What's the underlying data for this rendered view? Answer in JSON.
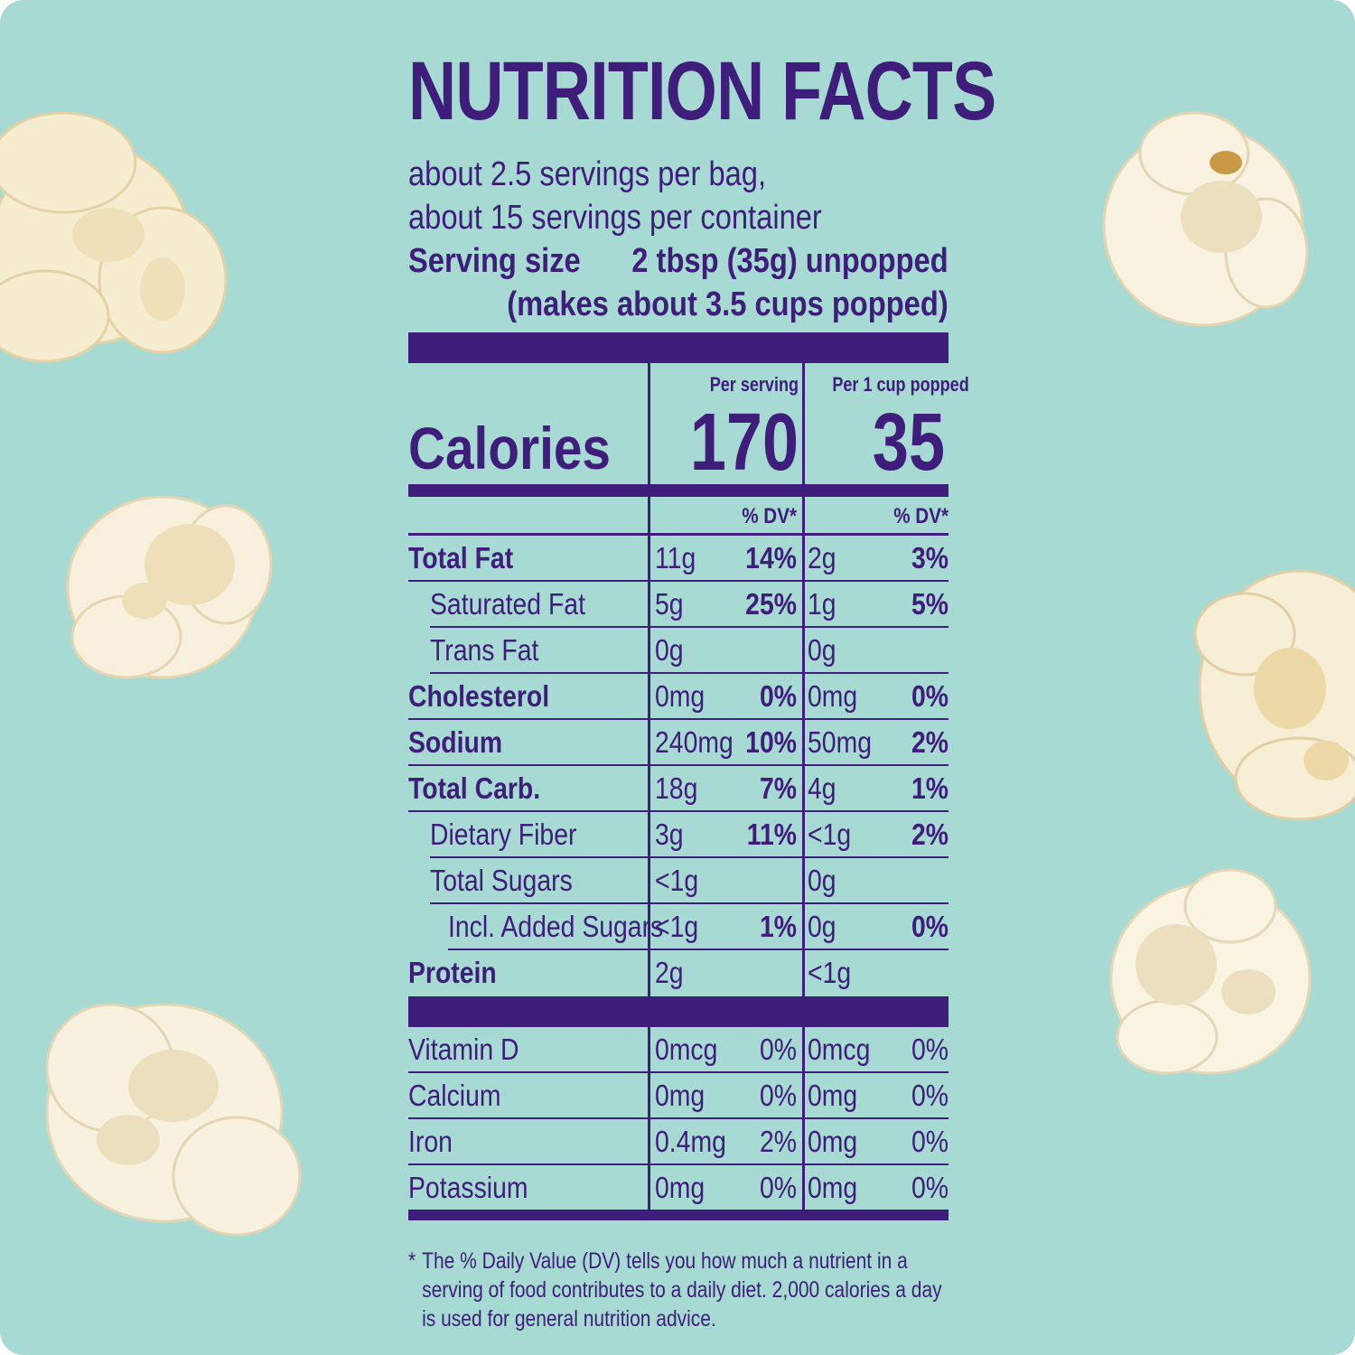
{
  "colors": {
    "background": "#a6dad3",
    "ink": "#3f1d7a",
    "popcorn": "#f7eed6"
  },
  "title": "NUTRITION FACTS",
  "servings_line1": "about 2.5 servings per bag,",
  "servings_line2": "about 15 servings per container",
  "serving_size_label": "Serving size",
  "serving_size_value": "2 tbsp (35g) unpopped",
  "serving_size_note": "(makes about 3.5 cups popped)",
  "columns": {
    "per_serving": "Per serving",
    "per_cup": "Per 1 cup popped",
    "dv": "% DV*"
  },
  "calories": {
    "label": "Calories",
    "per_serving": "170",
    "per_cup": "35"
  },
  "nutrients": [
    {
      "name": "Total Fat",
      "bold": true,
      "indent": 0,
      "serv_amt": "11g",
      "serv_dv": "14%",
      "cup_amt": "2g",
      "cup_dv": "3%"
    },
    {
      "name": "Saturated Fat",
      "bold": false,
      "indent": 1,
      "serv_amt": "5g",
      "serv_dv": "25%",
      "cup_amt": "1g",
      "cup_dv": "5%"
    },
    {
      "name": "Trans Fat",
      "bold": false,
      "indent": 1,
      "serv_amt": "0g",
      "serv_dv": "",
      "cup_amt": "0g",
      "cup_dv": ""
    },
    {
      "name": "Cholesterol",
      "bold": true,
      "indent": 0,
      "serv_amt": "0mg",
      "serv_dv": "0%",
      "cup_amt": "0mg",
      "cup_dv": "0%"
    },
    {
      "name": "Sodium",
      "bold": true,
      "indent": 0,
      "serv_amt": "240mg",
      "serv_dv": "10%",
      "cup_amt": "50mg",
      "cup_dv": "2%"
    },
    {
      "name": "Total Carb.",
      "bold": true,
      "indent": 0,
      "serv_amt": "18g",
      "serv_dv": "7%",
      "cup_amt": "4g",
      "cup_dv": "1%"
    },
    {
      "name": "Dietary Fiber",
      "bold": false,
      "indent": 1,
      "serv_amt": "3g",
      "serv_dv": "11%",
      "cup_amt": "<1g",
      "cup_dv": "2%"
    },
    {
      "name": "Total Sugars",
      "bold": false,
      "indent": 1,
      "serv_amt": "<1g",
      "serv_dv": "",
      "cup_amt": "0g",
      "cup_dv": ""
    },
    {
      "name": "Incl. Added Sugars",
      "bold": false,
      "indent": 2,
      "serv_amt": "<1g",
      "serv_dv": "1%",
      "cup_amt": "0g",
      "cup_dv": "0%"
    },
    {
      "name": "Protein",
      "bold": true,
      "indent": 0,
      "serv_amt": "2g",
      "serv_dv": "",
      "cup_amt": "<1g",
      "cup_dv": ""
    }
  ],
  "vitamins": [
    {
      "name": "Vitamin D",
      "serv_amt": "0mcg",
      "serv_dv": "0%",
      "cup_amt": "0mcg",
      "cup_dv": "0%"
    },
    {
      "name": "Calcium",
      "serv_amt": "0mg",
      "serv_dv": "0%",
      "cup_amt": "0mg",
      "cup_dv": "0%"
    },
    {
      "name": "Iron",
      "serv_amt": "0.4mg",
      "serv_dv": "2%",
      "cup_amt": "0mg",
      "cup_dv": "0%"
    },
    {
      "name": "Potassium",
      "serv_amt": "0mg",
      "serv_dv": "0%",
      "cup_amt": "0mg",
      "cup_dv": "0%"
    }
  ],
  "footnote_star": "*",
  "footnote": "The % Daily Value (DV) tells you how much a nutrient in a serving of food contributes to a daily diet. 2,000 calories a day is used for general nutrition advice."
}
